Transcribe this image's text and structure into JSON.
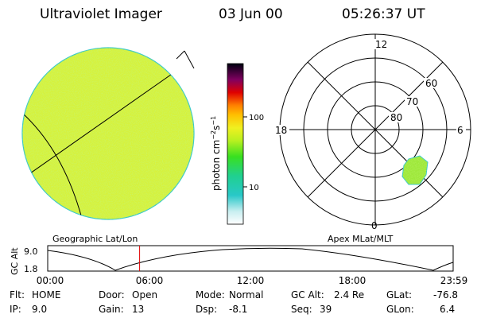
{
  "header": {
    "instrument": "Ultraviolet Imager",
    "date": "03 Jun 00",
    "time": "05:26:37 UT"
  },
  "colorbar": {
    "unit_label": "photon cm",
    "unit_exp1": "−2",
    "unit_s": "s",
    "unit_exp2": "−1",
    "ticks": [
      "100",
      "10"
    ]
  },
  "polar_plot": {
    "mlt_labels": [
      "12",
      "18",
      "6",
      "0"
    ],
    "mlat_labels": [
      "60",
      "70",
      "80"
    ]
  },
  "panel_titles": {
    "left": "Geographic Lat/Lon",
    "right": "Apex MLat/MLT"
  },
  "timeline": {
    "ylabel": "GC Alt",
    "y_ticks": [
      "9.0",
      "1.8"
    ],
    "x_ticks": [
      "00:00",
      "06:00",
      "12:00",
      "18:00",
      "23:59"
    ],
    "current_time_hours": 5.44
  },
  "status": {
    "row1": [
      {
        "label": "Flt:",
        "value": "HOME"
      },
      {
        "label": "Door:",
        "value": "Open"
      },
      {
        "label": "Mode:",
        "value": "Normal"
      },
      {
        "label": "GC Alt:",
        "value": "2.4 Re"
      },
      {
        "label": "GLat:",
        "value": "-76.8"
      }
    ],
    "row2": [
      {
        "label": "IP:",
        "value": "9.0"
      },
      {
        "label": "Gain:",
        "value": "13"
      },
      {
        "label": "Dsp:",
        "value": "-8.1"
      },
      {
        "label": "Seq:",
        "value": "39"
      },
      {
        "label": "GLon:",
        "value": "6.4"
      }
    ]
  },
  "colors": {
    "disk_fill": "#d6f23c",
    "disk_edge": "#38c8c8",
    "patch_fill": "#9ee83a",
    "time_marker": "#e00000"
  }
}
